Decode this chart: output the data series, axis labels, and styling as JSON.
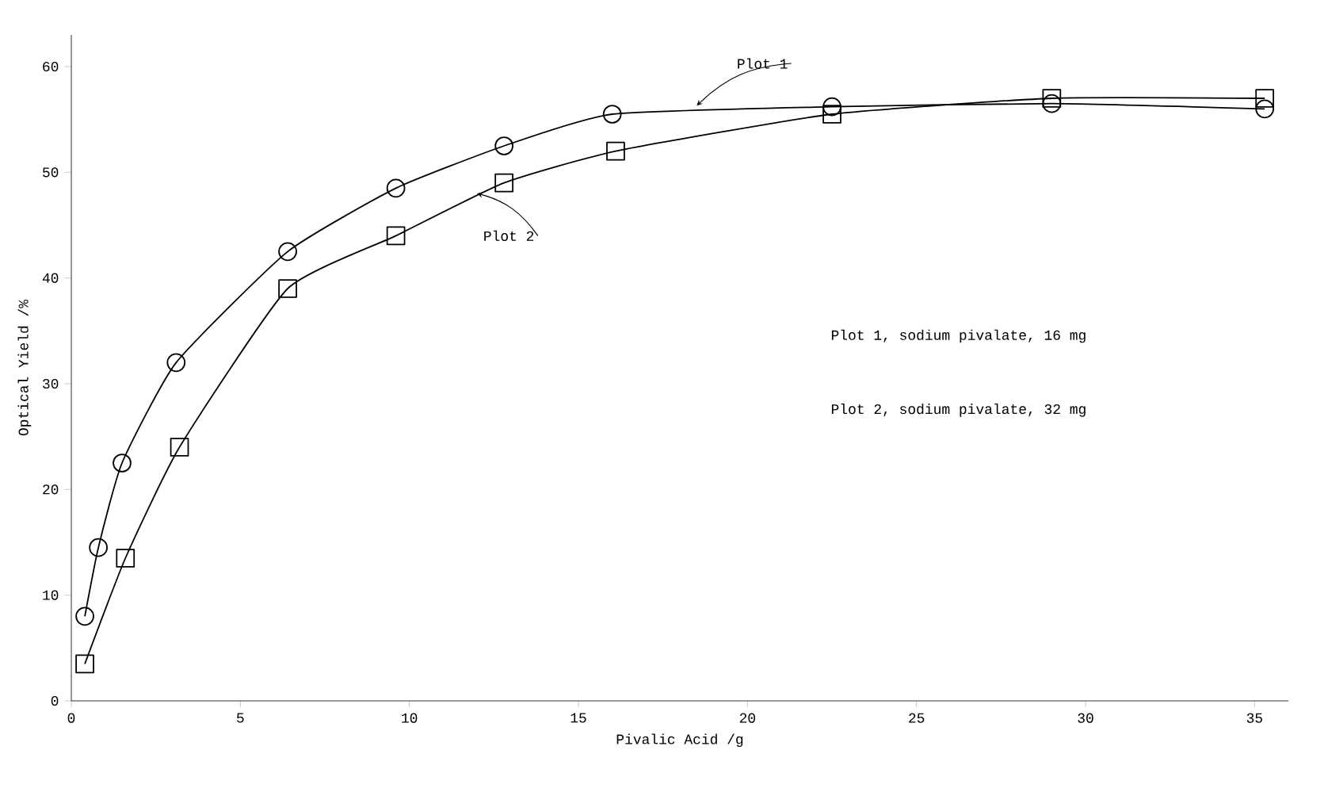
{
  "chart_data": {
    "type": "line",
    "xlabel": "Pivalic Acid /g",
    "ylabel": "Optical Yield /%",
    "xlim": [
      0,
      36
    ],
    "ylim": [
      0,
      63
    ],
    "xticks": [
      0,
      5,
      10,
      15,
      20,
      25,
      30,
      35
    ],
    "yticks": [
      0,
      10,
      20,
      30,
      40,
      50,
      60
    ],
    "grid": false,
    "line_style": "solid",
    "series": [
      {
        "color": "#000000",
        "marker": "circle",
        "x": [
          0.4,
          0.8,
          1.5,
          3.1,
          6.4,
          9.6,
          12.8,
          16,
          22.5,
          29,
          35.3
        ],
        "values": [
          8,
          14.5,
          22.5,
          32,
          42.5,
          48.5,
          52.5,
          55.5,
          56.2,
          56.5,
          56
        ]
      },
      {
        "color": "#000000",
        "marker": "square",
        "x": [
          0.4,
          1.6,
          3.2,
          6.4,
          9.6,
          12.8,
          16.1,
          22.5,
          29,
          35.3
        ],
        "values": [
          3.5,
          13.5,
          24,
          39,
          44,
          49,
          52,
          55.5,
          57,
          57
        ]
      }
    ],
    "annotations": [
      {
        "text": "Plot 1",
        "x": 18.5,
        "y": 56.3
      },
      {
        "text": "Plot 2",
        "x": 12,
        "y": 48
      },
      "Plot 1, sodium pivalate, 16 mg",
      "Plot 2, sodium pivalate, 32 mg"
    ]
  }
}
